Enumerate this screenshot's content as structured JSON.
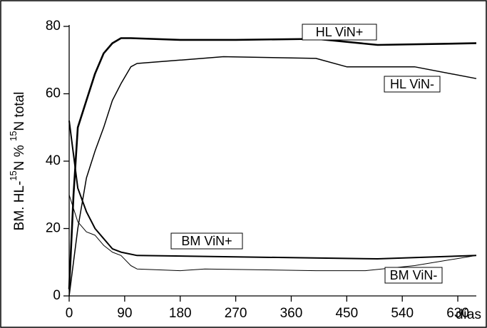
{
  "chart_data": {
    "type": "line",
    "y_label": [
      "BM. HL-",
      "15",
      "N % ",
      "15",
      "N total"
    ],
    "x_label": "días",
    "xlim": [
      0,
      660
    ],
    "xticks": [
      0,
      90,
      180,
      270,
      360,
      450,
      540,
      630
    ],
    "ylim": [
      0,
      80
    ],
    "yticks": [
      0,
      20,
      40,
      60,
      80
    ],
    "series": [
      {
        "name": "HL ViN+",
        "color": "#000000",
        "width": 2.6,
        "x": [
          0,
          7,
          14,
          28,
          42,
          56,
          70,
          84,
          100,
          180,
          270,
          400,
          500,
          660
        ],
        "values": [
          2,
          30,
          50,
          58,
          66,
          72,
          75,
          76.5,
          76.5,
          76,
          76,
          76.3,
          74.5,
          75
        ]
      },
      {
        "name": "HL ViN-",
        "color": "#000000",
        "width": 1.5,
        "x": [
          0,
          14,
          28,
          42,
          56,
          70,
          84,
          100,
          110,
          180,
          250,
          400,
          450,
          560,
          660
        ],
        "values": [
          0,
          20,
          35,
          43,
          50,
          58,
          63,
          68,
          69,
          70,
          71,
          70.5,
          68,
          68,
          64.5
        ]
      },
      {
        "name": "BM ViN+",
        "color": "#000000",
        "width": 2,
        "x": [
          0,
          14,
          28,
          42,
          56,
          70,
          84,
          110,
          500,
          660
        ],
        "values": [
          52,
          32,
          25,
          20,
          17,
          14,
          13,
          12,
          11,
          12
        ]
      },
      {
        "name": "BM ViN-",
        "color": "#000000",
        "width": 1,
        "x": [
          0,
          14,
          28,
          42,
          56,
          70,
          84,
          100,
          110,
          180,
          220,
          400,
          480,
          560,
          660
        ],
        "values": [
          30,
          22,
          19,
          18,
          15,
          13,
          12,
          9,
          8,
          7.5,
          8,
          7.5,
          7.5,
          9,
          12
        ]
      }
    ]
  }
}
